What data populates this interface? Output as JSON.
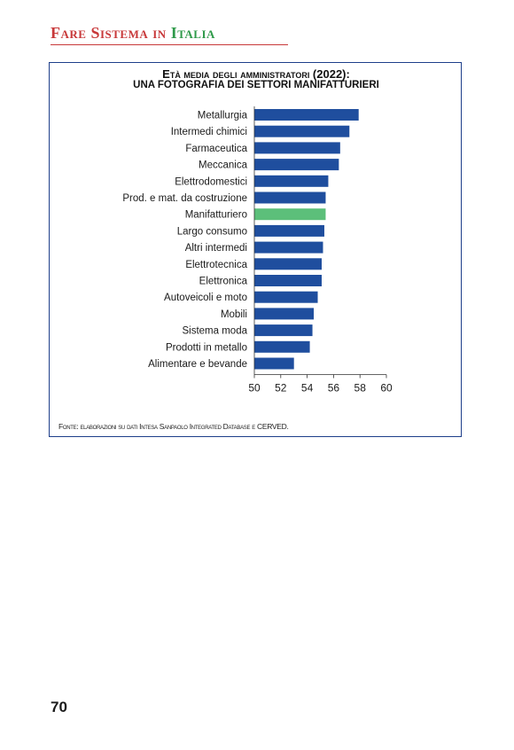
{
  "header": {
    "title_part1": "Fare Sistema in",
    "title_part2": "Italia"
  },
  "chart_data": {
    "type": "bar",
    "orientation": "horizontal",
    "title": "Età media degli amministratori (2022):",
    "subtitle": "UNA FOTOGRAFIA DEI SETTORI MANIFATTURIERI",
    "xlabel": "",
    "ylabel": "",
    "xlim": [
      50,
      60
    ],
    "xticks": [
      50,
      52,
      54,
      56,
      58,
      60
    ],
    "grid": false,
    "legend": "none",
    "categories": [
      "Metallurgia",
      "Intermedi chimici",
      "Farmaceutica",
      "Meccanica",
      "Elettrodomestici",
      "Prod. e mat. da costruzione",
      "Manifatturiero",
      "Largo consumo",
      "Altri intermedi",
      "Elettrotecnica",
      "Elettronica",
      "Autoveicoli e moto",
      "Mobili",
      "Sistema moda",
      "Prodotti in metallo",
      "Alimentare e bevande"
    ],
    "values": [
      57.9,
      57.2,
      56.5,
      56.4,
      55.6,
      55.4,
      55.4,
      55.3,
      55.2,
      55.1,
      55.1,
      54.8,
      54.5,
      54.4,
      54.2,
      53.0
    ],
    "highlight": "Manifatturiero",
    "colors": {
      "bar": "#1f4e9e",
      "highlight": "#5cbf7a"
    }
  },
  "source": "Fonte: elaborazioni su dati Intesa Sanpaolo Integrated Database e CERVED.",
  "page_number": "70"
}
